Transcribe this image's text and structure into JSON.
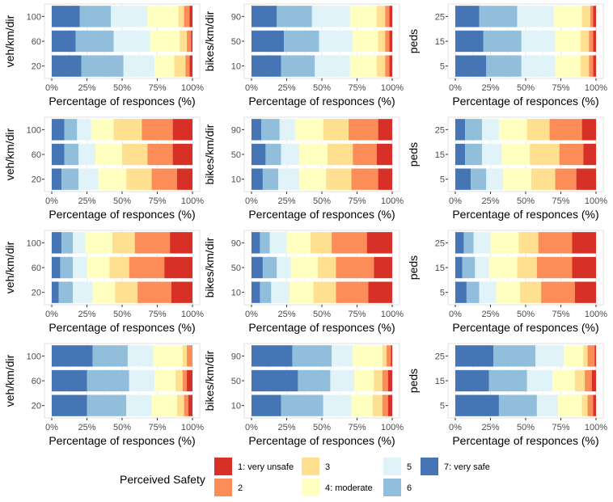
{
  "chart_data": {
    "type": "bar",
    "orientation": "horizontal",
    "stacked": "percent",
    "xlabel": "Percentage of responces (%)",
    "x_ticks": [
      "0%",
      "25%",
      "50%",
      "75%",
      "100%"
    ],
    "xlim": [
      0,
      100
    ],
    "legend": {
      "title": "Perceived Safety",
      "position": "bottom",
      "levels": [
        {
          "label": "1: very unsafe",
          "color": "#d73027"
        },
        {
          "label": "2",
          "color": "#fc8d59"
        },
        {
          "label": "3",
          "color": "#fee090"
        },
        {
          "label": "4: moderate",
          "color": "#ffffbf"
        },
        {
          "label": "5",
          "color": "#e0f3f8"
        },
        {
          "label": "6",
          "color": "#91bfdb"
        },
        {
          "label": "7: very safe",
          "color": "#4575b4"
        }
      ]
    },
    "panels": [
      {
        "row": 1,
        "col": 1,
        "ylabel": "veh/km/dir",
        "categories": [
          "100",
          "60",
          "20"
        ],
        "series_levels": "7..1 from left",
        "bars": [
          [
            20,
            22,
            26,
            22,
            4,
            4,
            2
          ],
          [
            17,
            27,
            26,
            21,
            5,
            3,
            1
          ],
          [
            21,
            30,
            22,
            14,
            8,
            3,
            2
          ]
        ]
      },
      {
        "row": 1,
        "col": 2,
        "ylabel": "bikes/km/dir",
        "categories": [
          "90",
          "50",
          "10"
        ],
        "bars": [
          [
            18,
            25,
            27,
            19,
            6,
            3,
            2
          ],
          [
            23,
            25,
            24,
            18,
            5,
            3,
            2
          ],
          [
            21,
            24,
            25,
            19,
            6,
            3,
            2
          ]
        ]
      },
      {
        "row": 1,
        "col": 3,
        "ylabel": "peds",
        "categories": [
          "25",
          "15",
          "5"
        ],
        "bars": [
          [
            17,
            27,
            26,
            20,
            6,
            2,
            2
          ],
          [
            20,
            27,
            24,
            18,
            6,
            3,
            2
          ],
          [
            22,
            25,
            24,
            18,
            6,
            3,
            2
          ]
        ]
      },
      {
        "row": 2,
        "col": 1,
        "ylabel": "veh/km/dir",
        "categories": [
          "100",
          "60",
          "20"
        ],
        "bars": [
          [
            9,
            9,
            10,
            16,
            20,
            22,
            14
          ],
          [
            9,
            10,
            12,
            19,
            18,
            18,
            14
          ],
          [
            7,
            12,
            14,
            20,
            18,
            18,
            11
          ]
        ]
      },
      {
        "row": 2,
        "col": 2,
        "ylabel": "bikes/km/dir",
        "categories": [
          "90",
          "50",
          "10"
        ],
        "bars": [
          [
            7,
            13,
            11,
            20,
            18,
            21,
            10
          ],
          [
            10,
            11,
            13,
            20,
            18,
            17,
            11
          ],
          [
            8,
            11,
            15,
            19,
            18,
            19,
            10
          ]
        ]
      },
      {
        "row": 2,
        "col": 3,
        "ylabel": "peds",
        "categories": [
          "25",
          "15",
          "5"
        ],
        "bars": [
          [
            7,
            12,
            12,
            20,
            16,
            23,
            10
          ],
          [
            7,
            12,
            14,
            20,
            21,
            17,
            9
          ],
          [
            11,
            11,
            12,
            20,
            17,
            15,
            14
          ]
        ]
      },
      {
        "row": 3,
        "col": 1,
        "ylabel": "veh/km/dir",
        "categories": [
          "100",
          "60",
          "20"
        ],
        "bars": [
          [
            7,
            8,
            9,
            19,
            16,
            25,
            16
          ],
          [
            6,
            9,
            10,
            16,
            14,
            25,
            20
          ],
          [
            5,
            10,
            14,
            16,
            16,
            24,
            15
          ]
        ]
      },
      {
        "row": 3,
        "col": 2,
        "ylabel": "bikes/km/dir",
        "categories": [
          "90",
          "50",
          "10"
        ],
        "bars": [
          [
            6,
            7,
            12,
            17,
            15,
            25,
            18
          ],
          [
            8,
            10,
            10,
            19,
            13,
            27,
            13
          ],
          [
            6,
            8,
            13,
            17,
            16,
            23,
            17
          ]
        ]
      },
      {
        "row": 3,
        "col": 3,
        "ylabel": "peds",
        "categories": [
          "25",
          "15",
          "5"
        ],
        "bars": [
          [
            6,
            7,
            12,
            20,
            14,
            24,
            17
          ],
          [
            5,
            9,
            10,
            20,
            14,
            25,
            17
          ],
          [
            8,
            9,
            12,
            17,
            15,
            24,
            15
          ]
        ]
      },
      {
        "row": 4,
        "col": 1,
        "ylabel": "veh/km/dir",
        "categories": [
          "100",
          "60",
          "20"
        ],
        "bars": [
          [
            29,
            25,
            18,
            21,
            3,
            4,
            0
          ],
          [
            25,
            30,
            18,
            15,
            5,
            3,
            4
          ],
          [
            25,
            28,
            18,
            18,
            5,
            3,
            3
          ]
        ]
      },
      {
        "row": 4,
        "col": 2,
        "ylabel": "bikes/km/dir",
        "categories": [
          "90",
          "50",
          "10"
        ],
        "bars": [
          [
            29,
            28,
            15,
            21,
            3,
            3,
            1
          ],
          [
            33,
            23,
            17,
            14,
            6,
            4,
            3
          ],
          [
            21,
            30,
            20,
            15,
            7,
            4,
            3
          ]
        ]
      },
      {
        "row": 4,
        "col": 3,
        "ylabel": "peds",
        "categories": [
          "25",
          "15",
          "5"
        ],
        "bars": [
          [
            27,
            30,
            20,
            14,
            3,
            5,
            1
          ],
          [
            24,
            27,
            18,
            16,
            7,
            5,
            3
          ],
          [
            31,
            27,
            15,
            17,
            4,
            4,
            2
          ]
        ]
      }
    ]
  }
}
